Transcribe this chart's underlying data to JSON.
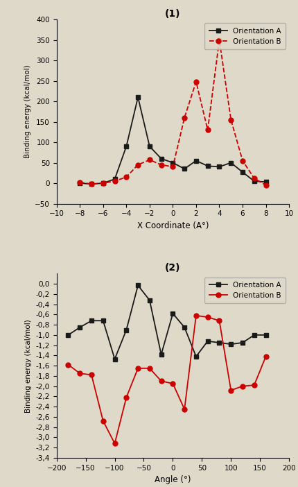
{
  "plot1": {
    "title": "(1)",
    "xlabel": "X Coordinate (A°)",
    "ylabel": "Binding energy (kcal/mol)",
    "xlim": [
      -10,
      10
    ],
    "ylim": [
      -50,
      400
    ],
    "yticks": [
      -50,
      0,
      50,
      100,
      150,
      200,
      250,
      300,
      350,
      400
    ],
    "xticks": [
      -10,
      -8,
      -6,
      -4,
      -2,
      0,
      2,
      4,
      6,
      8,
      10
    ],
    "orient_A_x": [
      -8,
      -7,
      -6,
      -5,
      -4,
      -3,
      -2,
      -1,
      0,
      1,
      2,
      3,
      4,
      5,
      6,
      7,
      8
    ],
    "orient_A_y": [
      0,
      -2,
      0,
      10,
      90,
      210,
      90,
      60,
      50,
      35,
      55,
      42,
      40,
      50,
      27,
      5,
      3
    ],
    "orient_B_x": [
      -8,
      -7,
      -6,
      -5,
      -4,
      -3,
      -2,
      -1,
      0,
      1,
      2,
      3,
      4,
      5,
      6,
      7,
      8
    ],
    "orient_B_y": [
      2,
      -2,
      0,
      5,
      15,
      45,
      57,
      45,
      40,
      160,
      248,
      130,
      350,
      155,
      55,
      12,
      -5
    ],
    "color_A": "#1a1a1a",
    "color_B": "#cc0000",
    "legend_loc": "upper right"
  },
  "plot2": {
    "title": "(2)",
    "xlabel": "Angle (°)",
    "ylabel": "Binding energy (kcal/mol)",
    "xlim": [
      -200,
      200
    ],
    "ylim_bottom": -3.4,
    "ylim_top": 0.2,
    "yticks": [
      0.0,
      -0.2,
      -0.4,
      -0.6,
      -0.8,
      -1.0,
      -1.2,
      -1.4,
      -1.6,
      -1.8,
      -2.0,
      -2.2,
      -2.4,
      -2.6,
      -2.8,
      -3.0,
      -3.2,
      -3.4
    ],
    "ytick_labels": [
      "0,0",
      "-0,2",
      "-0,4",
      "-0,6",
      "-0,8",
      "-1,0",
      "-1,2",
      "-1,4",
      "-1,6",
      "-1,8",
      "-2,0",
      "-2,2",
      "-2,4",
      "-2,6",
      "-2,8",
      "-3,0",
      "-3,2",
      "-3,4"
    ],
    "xticks": [
      -200,
      -150,
      -100,
      -50,
      0,
      50,
      100,
      150,
      200
    ],
    "orient_A_x": [
      -180,
      -160,
      -140,
      -120,
      -100,
      -80,
      -60,
      -40,
      -20,
      0,
      20,
      40,
      60,
      80,
      100,
      120,
      140,
      160
    ],
    "orient_A_y": [
      -1.0,
      -0.85,
      -0.72,
      -0.72,
      -1.47,
      -0.9,
      -0.03,
      -0.32,
      -1.38,
      -0.58,
      -0.85,
      -1.42,
      -1.12,
      -1.15,
      -1.18,
      -1.15,
      -1.0,
      -1.0
    ],
    "orient_B_x": [
      -180,
      -160,
      -140,
      -120,
      -100,
      -80,
      -60,
      -40,
      -20,
      0,
      20,
      40,
      60,
      80,
      100,
      120,
      140,
      160
    ],
    "orient_B_y": [
      -1.58,
      -1.75,
      -1.78,
      -2.68,
      -3.12,
      -2.22,
      -1.65,
      -1.65,
      -1.9,
      -1.95,
      -2.45,
      -0.62,
      -0.65,
      -0.72,
      -2.08,
      -2.0,
      -1.98,
      -1.42
    ],
    "color_A": "#1a1a1a",
    "color_B": "#cc0000",
    "legend_loc": "upper right"
  },
  "bg_color": "#ded9c8"
}
